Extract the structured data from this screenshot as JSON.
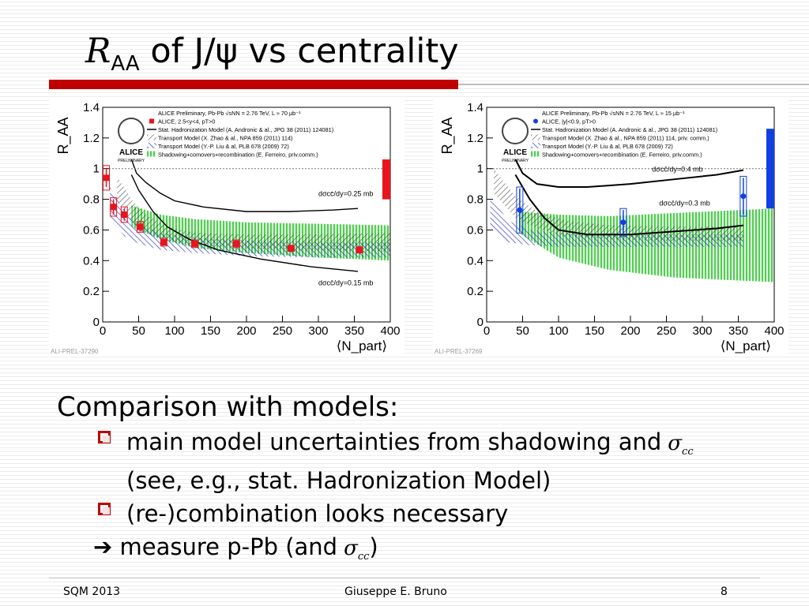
{
  "slide": {
    "title_r": "R",
    "title_sub": "AA",
    "title_rest": " of J/ψ vs centrality",
    "comparison": "Comparison with models:",
    "bullet1_a": "main model uncertainties from shadowing and",
    "bullet1_b": "(see, e.g., stat. Hadronization Model)",
    "bullet2": "(re-)combination looks necessary",
    "bullet3_arrow": "➔",
    "bullet3": "measure p-Pb  (and",
    "bullet3_end": ")",
    "sigma": "σ",
    "sigma_sub": "cc"
  },
  "footer": {
    "left": "SQM 2013",
    "center": "Giuseppe E. Bruno",
    "right": "8"
  },
  "chart_data": [
    {
      "type": "scatter",
      "ylabel": "R_AA",
      "xlabel": "⟨N_part⟩",
      "xlim": [
        0,
        400
      ],
      "ylim": [
        0,
        1.4
      ],
      "xticks": [
        "0",
        "50",
        "100",
        "150",
        "200",
        "250",
        "300",
        "350",
        "400"
      ],
      "yticks": [
        "0",
        "0.2",
        "0.4",
        "0.6",
        "0.8",
        "1",
        "1.2",
        "1.4"
      ],
      "watermark": "ALI-PREL-37290",
      "logo_text": [
        "ALICE",
        "PRELIMINARY"
      ],
      "legend": [
        "ALICE Preliminary, Pb-Pb  √sNN = 2.76 TeV, L ≈ 70 µb⁻¹",
        "ALICE, 2.5<y<4, pT>0",
        "Stat. Hadronization Model (A. Andronic & al., JPG 38 (2011) 124081)",
        "Transport Model (X. Zhao & al., NPA 859 (2011) 114)",
        "Transport Model (Y.-P. Liu & al, PLB 678 (2009) 72)",
        "Shadowing+comovers+recombination (E. Ferreiro, priv.comm.)"
      ],
      "annotations": [
        "dσcc̄/dy=0.25 mb",
        "dσcc̄/dy=0.15 mb"
      ],
      "color": "#e8141e",
      "points": [
        {
          "x": 5,
          "y": 0.94,
          "err": 0.06,
          "sys": 0.08
        },
        {
          "x": 15,
          "y": 0.75,
          "err": 0.05,
          "sys": 0.06
        },
        {
          "x": 30,
          "y": 0.7,
          "err": 0.04,
          "sys": 0.05
        },
        {
          "x": 52,
          "y": 0.62,
          "err": 0.03,
          "sys": 0.035
        },
        {
          "x": 85,
          "y": 0.52,
          "err": 0.02,
          "sys": 0.025
        },
        {
          "x": 128,
          "y": 0.51,
          "err": 0.02,
          "sys": 0.025
        },
        {
          "x": 186,
          "y": 0.51,
          "err": 0.02,
          "sys": 0.025
        },
        {
          "x": 262,
          "y": 0.48,
          "err": 0.02,
          "sys": 0.02
        },
        {
          "x": 357,
          "y": 0.47,
          "err": 0.02,
          "sys": 0.02
        }
      ],
      "global_unc": [
        0.8,
        1.06
      ],
      "stat_upper": [
        [
          40,
          1.06
        ],
        [
          47,
          0.97
        ],
        [
          60,
          0.91
        ],
        [
          80,
          0.84
        ],
        [
          100,
          0.79
        ],
        [
          140,
          0.75
        ],
        [
          200,
          0.72
        ],
        [
          260,
          0.72
        ],
        [
          320,
          0.73
        ],
        [
          355,
          0.74
        ]
      ],
      "stat_lower": [
        [
          40,
          0.96
        ],
        [
          50,
          0.86
        ],
        [
          70,
          0.72
        ],
        [
          90,
          0.62
        ],
        [
          120,
          0.54
        ],
        [
          160,
          0.47
        ],
        [
          220,
          0.41
        ],
        [
          290,
          0.36
        ],
        [
          355,
          0.33
        ]
      ],
      "zhao_upper": [
        [
          20,
          0.95
        ],
        [
          40,
          0.8
        ],
        [
          60,
          0.7
        ],
        [
          90,
          0.62
        ],
        [
          130,
          0.58
        ],
        [
          200,
          0.57
        ],
        [
          280,
          0.57
        ],
        [
          400,
          0.58
        ]
      ],
      "zhao_lower": [
        [
          20,
          0.78
        ],
        [
          40,
          0.66
        ],
        [
          60,
          0.58
        ],
        [
          90,
          0.53
        ],
        [
          130,
          0.5
        ],
        [
          200,
          0.48
        ],
        [
          280,
          0.47
        ],
        [
          400,
          0.46
        ]
      ],
      "liu_upper": [
        [
          10,
          0.88
        ],
        [
          30,
          0.72
        ],
        [
          50,
          0.64
        ],
        [
          80,
          0.58
        ],
        [
          130,
          0.55
        ],
        [
          200,
          0.53
        ],
        [
          300,
          0.52
        ],
        [
          400,
          0.52
        ]
      ],
      "liu_lower": [
        [
          10,
          0.68
        ],
        [
          30,
          0.56
        ],
        [
          50,
          0.51
        ],
        [
          80,
          0.47
        ],
        [
          130,
          0.45
        ],
        [
          200,
          0.43
        ],
        [
          300,
          0.42
        ],
        [
          400,
          0.42
        ]
      ],
      "ferreiro_upper": [
        [
          40,
          0.76
        ],
        [
          80,
          0.7
        ],
        [
          130,
          0.67
        ],
        [
          200,
          0.65
        ],
        [
          300,
          0.64
        ],
        [
          400,
          0.63
        ]
      ],
      "ferreiro_lower": [
        [
          40,
          0.62
        ],
        [
          80,
          0.54
        ],
        [
          130,
          0.48
        ],
        [
          200,
          0.45
        ],
        [
          300,
          0.42
        ],
        [
          400,
          0.4
        ]
      ]
    },
    {
      "type": "scatter",
      "ylabel": "R_AA",
      "xlabel": "⟨N_part⟩",
      "xlim": [
        0,
        400
      ],
      "ylim": [
        0,
        1.4
      ],
      "xticks": [
        "0",
        "50",
        "100",
        "150",
        "200",
        "250",
        "300",
        "350",
        "400"
      ],
      "yticks": [
        "0",
        "0.2",
        "0.4",
        "0.6",
        "0.8",
        "1",
        "1.2",
        "1.4"
      ],
      "watermark": "ALI-PREL-37269",
      "logo_text": [
        "ALICE",
        "PRELIMINARY"
      ],
      "legend": [
        "ALICE Preliminary, Pb-Pb  √sNN = 2.76 TeV, L ≈ 15 µb⁻¹",
        "ALICE, |y|<0.9, pT>0",
        "Stat. Hadronization Model (A. Andronic & al., JPG 38 (2011) 124081)",
        "Transport Model (X. Zhao & al., NPA 859 (2011) 114, priv. comm.)",
        "Transport Model (Y.-P. Liu & al, PLB 678 (2009) 72)",
        "Shadowing+comovers+recombination (E. Ferreiro, priv.comm.)"
      ],
      "annotations": [
        "dσcc̄/dy=0.4 mb",
        "dσcc̄/dy=0.3 mb"
      ],
      "color": "#1040e0",
      "points": [
        {
          "x": 46,
          "y": 0.73,
          "err": 0.14,
          "sys": 0.15
        },
        {
          "x": 190,
          "y": 0.65,
          "err": 0.08,
          "sys": 0.09
        },
        {
          "x": 357,
          "y": 0.82,
          "err": 0.12,
          "sys": 0.13
        }
      ],
      "global_unc": [
        0.74,
        1.26
      ],
      "stat_upper": [
        [
          40,
          1.06
        ],
        [
          50,
          0.97
        ],
        [
          70,
          0.9
        ],
        [
          100,
          0.88
        ],
        [
          140,
          0.88
        ],
        [
          200,
          0.9
        ],
        [
          260,
          0.93
        ],
        [
          320,
          0.96
        ],
        [
          357,
          0.99
        ]
      ],
      "stat_lower": [
        [
          40,
          0.96
        ],
        [
          60,
          0.8
        ],
        [
          80,
          0.68
        ],
        [
          100,
          0.6
        ],
        [
          140,
          0.57
        ],
        [
          200,
          0.57
        ],
        [
          260,
          0.59
        ],
        [
          320,
          0.61
        ],
        [
          357,
          0.63
        ]
      ],
      "zhao_upper": [
        [
          10,
          1.0
        ],
        [
          40,
          0.82
        ],
        [
          70,
          0.72
        ],
        [
          110,
          0.66
        ],
        [
          170,
          0.63
        ],
        [
          250,
          0.62
        ],
        [
          357,
          0.62
        ]
      ],
      "zhao_lower": [
        [
          10,
          0.84
        ],
        [
          40,
          0.68
        ],
        [
          70,
          0.61
        ],
        [
          110,
          0.56
        ],
        [
          170,
          0.54
        ],
        [
          250,
          0.53
        ],
        [
          357,
          0.53
        ]
      ],
      "liu_upper": [
        [
          5,
          0.82
        ],
        [
          30,
          0.66
        ],
        [
          60,
          0.6
        ],
        [
          100,
          0.58
        ],
        [
          200,
          0.57
        ],
        [
          357,
          0.57
        ]
      ],
      "liu_lower": [
        [
          5,
          0.62
        ],
        [
          30,
          0.52
        ],
        [
          60,
          0.5
        ],
        [
          100,
          0.49
        ],
        [
          200,
          0.49
        ],
        [
          357,
          0.49
        ]
      ],
      "ferreiro_upper": [
        [
          45,
          0.72
        ],
        [
          100,
          0.7
        ],
        [
          170,
          0.69
        ],
        [
          260,
          0.71
        ],
        [
          400,
          0.74
        ]
      ],
      "ferreiro_lower": [
        [
          45,
          0.58
        ],
        [
          100,
          0.42
        ],
        [
          170,
          0.34
        ],
        [
          260,
          0.29
        ],
        [
          400,
          0.26
        ]
      ]
    }
  ]
}
